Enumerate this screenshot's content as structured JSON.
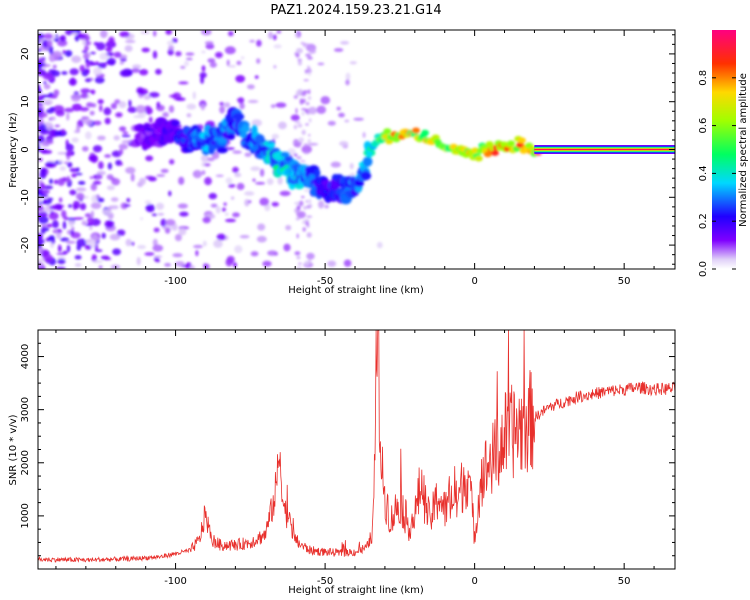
{
  "title": "PAZ1.2024.159.23.21.G14",
  "chart_data": [
    {
      "type": "heatmap",
      "xlabel": "Height of straight line (km)",
      "ylabel": "Frequency (Hz)",
      "xlim": [
        -146,
        67
      ],
      "ylim": [
        -25,
        25
      ],
      "xticks": [
        -100,
        -50,
        0,
        50
      ],
      "xtick_labels": [
        "-100",
        "-50",
        "0",
        "50"
      ],
      "yticks": [
        -20,
        -10,
        0,
        10,
        20
      ],
      "ytick_labels": [
        "-20",
        "-10",
        "0",
        "10",
        "20"
      ],
      "colorbar": {
        "label": "Normalized spectral amplitude",
        "range": [
          0,
          1
        ],
        "ticks": [
          0.0,
          0.2,
          0.4,
          0.6,
          0.8
        ],
        "tick_labels": [
          "0.0",
          "0.2",
          "0.4",
          "0.6",
          "0.8"
        ],
        "colormap": "gist_rainbow_r"
      },
      "ridge": {
        "x": [
          -110,
          -100,
          -95,
          -90,
          -85,
          -80,
          -75,
          -70,
          -65,
          -60,
          -55,
          -50,
          -45,
          -40,
          -37,
          -35,
          -32,
          -30,
          -25,
          -20,
          -15,
          -10,
          -5,
          0,
          5,
          10,
          15,
          20,
          25,
          30,
          67
        ],
        "freq": [
          3,
          4,
          2,
          2,
          2,
          6,
          3,
          0,
          -3,
          -5,
          -6,
          -8,
          -8,
          -8,
          -4,
          0,
          2,
          3,
          3,
          3,
          2,
          1,
          0,
          -1,
          0,
          0.5,
          1,
          0,
          0,
          0,
          0
        ],
        "amplitude": [
          0.15,
          0.2,
          0.3,
          0.35,
          0.3,
          0.3,
          0.3,
          0.35,
          0.45,
          0.4,
          0.3,
          0.25,
          0.25,
          0.3,
          0.35,
          0.45,
          0.6,
          0.75,
          0.8,
          0.75,
          0.7,
          0.65,
          0.7,
          0.75,
          0.8,
          0.85,
          0.85,
          0.9,
          0.95,
          0.98,
          1.0
        ]
      }
    },
    {
      "type": "line",
      "xlabel": "Height of straight line (km)",
      "ylabel": "SNR (10 * v/v)",
      "xlim": [
        -146,
        67
      ],
      "ylim": [
        0,
        4500
      ],
      "xticks": [
        -100,
        -50,
        0,
        50
      ],
      "xtick_labels": [
        "-100",
        "-50",
        "0",
        "50"
      ],
      "yticks": [
        1000,
        2000,
        3000,
        4000
      ],
      "ytick_labels": [
        "1000",
        "2000",
        "3000",
        "4000"
      ],
      "color": "#e8302c",
      "series": [
        {
          "x": [
            -146,
            -130,
            -115,
            -105,
            -95,
            -92,
            -90,
            -88,
            -85,
            -80,
            -75,
            -70,
            -67,
            -65,
            -64,
            -62,
            -60,
            -58,
            -55,
            -50,
            -45,
            -40,
            -36,
            -34,
            -33,
            -32.5,
            -32,
            -31,
            -30,
            -28,
            -25,
            -22,
            -20,
            -18,
            -15,
            -12,
            -10,
            -8,
            -6,
            -4,
            -2,
            -1,
            0,
            2,
            5,
            8,
            10,
            15,
            20,
            25,
            30,
            35,
            40,
            45,
            50,
            55,
            60,
            67
          ],
          "y": [
            180,
            170,
            190,
            230,
            350,
            550,
            1050,
            550,
            450,
            450,
            500,
            650,
            1300,
            2200,
            1200,
            900,
            550,
            450,
            350,
            320,
            300,
            320,
            400,
            700,
            3000,
            4400,
            3500,
            1800,
            1400,
            900,
            1300,
            800,
            1000,
            1600,
            900,
            1400,
            1100,
            1300,
            1250,
            1600,
            1800,
            1200,
            600,
            1700,
            2000,
            2200,
            2500,
            2650,
            2850,
            3050,
            3150,
            3250,
            3300,
            3350,
            3380,
            3420,
            3380,
            3400
          ]
        }
      ]
    }
  ]
}
